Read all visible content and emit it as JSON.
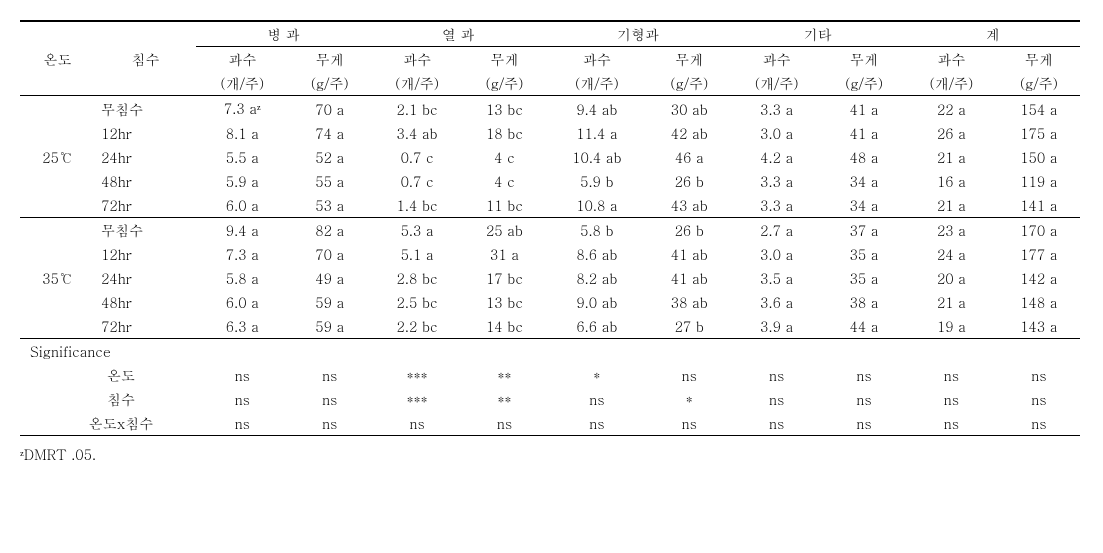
{
  "headers": {
    "col1": "온도",
    "col2": "침수",
    "groups": [
      "병 과",
      "열 과",
      "기형과",
      "기타",
      "계"
    ],
    "sub1": "과수",
    "sub1_unit": "(개/주)",
    "sub2": "무게",
    "sub2_unit": "(g/주)"
  },
  "temp_groups": [
    {
      "label": "25℃",
      "rows": [
        {
          "chim": "무침수",
          "v": [
            "7.3 aᶻ",
            "70 a",
            "2.1 bc",
            "13 bc",
            "9.4 ab",
            "30 ab",
            "3.3 a",
            "41 a",
            "22 a",
            "154 a"
          ]
        },
        {
          "chim": "12hr",
          "v": [
            "8.1 a",
            "74 a",
            "3.4 ab",
            "18 bc",
            "11.4 a",
            "42 ab",
            "3.0 a",
            "41 a",
            "26 a",
            "175 a"
          ]
        },
        {
          "chim": "24hr",
          "v": [
            "5.5 a",
            "52 a",
            "0.7 c",
            "4 c",
            "10.4 ab",
            "46 a",
            "4.2 a",
            "48 a",
            "21 a",
            "150 a"
          ]
        },
        {
          "chim": "48hr",
          "v": [
            "5.9 a",
            "55 a",
            "0.7 c",
            "4 c",
            "5.9 b",
            "26 b",
            "3.3 a",
            "34 a",
            "16 a",
            "119 a"
          ]
        },
        {
          "chim": "72hr",
          "v": [
            "6.0 a",
            "53 a",
            "1.4 bc",
            "11 bc",
            "10.8 a",
            "43 ab",
            "3.3 a",
            "34 a",
            "21 a",
            "141 a"
          ]
        }
      ]
    },
    {
      "label": "35℃",
      "rows": [
        {
          "chim": "무침수",
          "v": [
            "9.4 a",
            "82 a",
            "5.3 a",
            "25 ab",
            "5.8 b",
            "26 b",
            "2.7 a",
            "37 a",
            "23 a",
            "170 a"
          ]
        },
        {
          "chim": "12hr",
          "v": [
            "7.3 a",
            "70 a",
            "5.1 a",
            "31 a",
            "8.6 ab",
            "41 ab",
            "3.0 a",
            "35 a",
            "24 a",
            "177 a"
          ]
        },
        {
          "chim": "24hr",
          "v": [
            "5.8 a",
            "49 a",
            "2.8 bc",
            "17 bc",
            "8.2 ab",
            "41 ab",
            "3.5 a",
            "35 a",
            "20 a",
            "142 a"
          ]
        },
        {
          "chim": "48hr",
          "v": [
            "6.0 a",
            "59 a",
            "2.5 bc",
            "13 bc",
            "9.0 ab",
            "38 ab",
            "3.6 a",
            "38 a",
            "21 a",
            "148 a"
          ]
        },
        {
          "chim": "72hr",
          "v": [
            "6.3 a",
            "59 a",
            "2.2 bc",
            "14 bc",
            "6.6 ab",
            "27 b",
            "3.9 a",
            "44 a",
            "19 a",
            "143 a"
          ]
        }
      ]
    }
  ],
  "sig": {
    "title": "Significance",
    "rows": [
      {
        "label": "온도",
        "v": [
          "ns",
          "ns",
          "***",
          "**",
          "*",
          "ns",
          "ns",
          "ns",
          "ns",
          "ns"
        ]
      },
      {
        "label": "침수",
        "v": [
          "ns",
          "ns",
          "***",
          "**",
          "ns",
          "*",
          "ns",
          "ns",
          "ns",
          "ns"
        ]
      },
      {
        "label": "온도x침수",
        "v": [
          "ns",
          "ns",
          "ns",
          "ns",
          "ns",
          "ns",
          "ns",
          "ns",
          "ns",
          "ns"
        ]
      }
    ]
  },
  "footnote": "ᶻDMRT .05."
}
